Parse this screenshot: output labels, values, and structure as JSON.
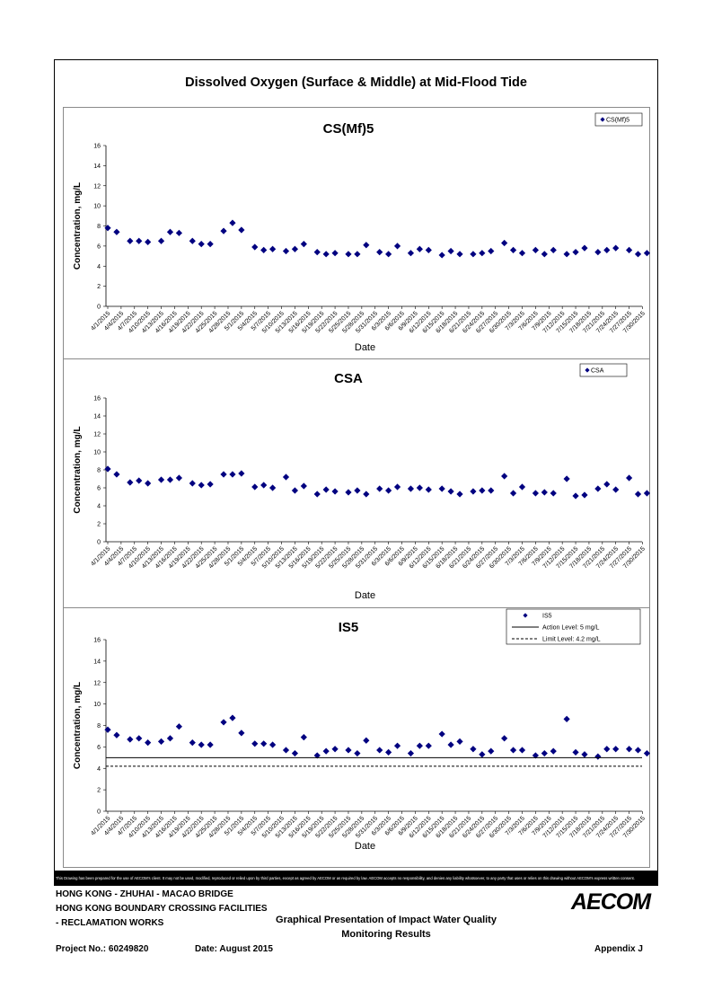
{
  "main_title": "Dissolved Oxygen (Surface & Middle) at Mid-Flood Tide",
  "date_ticks": [
    "4/1/2015",
    "4/4/2015",
    "4/7/2015",
    "4/10/2015",
    "4/13/2015",
    "4/16/2015",
    "4/19/2015",
    "4/22/2015",
    "4/25/2015",
    "4/28/2015",
    "5/1/2015",
    "5/4/2015",
    "5/7/2015",
    "5/10/2015",
    "5/13/2015",
    "5/16/2015",
    "5/19/2015",
    "5/22/2015",
    "5/25/2015",
    "5/28/2015",
    "5/31/2015",
    "6/3/2015",
    "6/6/2015",
    "6/9/2015",
    "6/12/2015",
    "6/15/2015",
    "6/18/2015",
    "6/21/2015",
    "6/24/2015",
    "6/27/2015",
    "6/30/2015",
    "7/3/2015",
    "7/6/2015",
    "7/9/2015",
    "7/12/2015",
    "7/15/2015",
    "7/18/2015",
    "7/21/2015",
    "7/24/2015",
    "7/27/2015",
    "7/30/2015"
  ],
  "chart_data": [
    {
      "type": "scatter",
      "title": "CS(Mf)5",
      "xlabel": "Date",
      "ylabel": "Concentration, mg/L",
      "ylim": [
        0,
        16
      ],
      "yticks": [
        "0",
        "2",
        "4",
        "6",
        "8",
        "10",
        "12",
        "14",
        "16"
      ],
      "legend_placement": "top-right",
      "series": [
        {
          "name": "CS(Mf)5",
          "marker": "diamond",
          "color": "#000080",
          "points": [
            [
              "4/1/2015",
              7.8
            ],
            [
              "4/3/2015",
              7.4
            ],
            [
              "4/6/2015",
              6.5
            ],
            [
              "4/8/2015",
              6.5
            ],
            [
              "4/10/2015",
              6.4
            ],
            [
              "4/13/2015",
              6.5
            ],
            [
              "4/15/2015",
              7.4
            ],
            [
              "4/17/2015",
              7.3
            ],
            [
              "4/20/2015",
              6.5
            ],
            [
              "4/22/2015",
              6.2
            ],
            [
              "4/24/2015",
              6.2
            ],
            [
              "4/27/2015",
              7.5
            ],
            [
              "4/29/2015",
              8.3
            ],
            [
              "5/1/2015",
              7.6
            ],
            [
              "5/4/2015",
              5.9
            ],
            [
              "5/6/2015",
              5.6
            ],
            [
              "5/8/2015",
              5.7
            ],
            [
              "5/11/2015",
              5.5
            ],
            [
              "5/13/2015",
              5.7
            ],
            [
              "5/15/2015",
              6.2
            ],
            [
              "5/18/2015",
              5.4
            ],
            [
              "5/20/2015",
              5.2
            ],
            [
              "5/22/2015",
              5.3
            ],
            [
              "5/25/2015",
              5.2
            ],
            [
              "5/27/2015",
              5.2
            ],
            [
              "5/29/2015",
              6.1
            ],
            [
              "6/1/2015",
              5.4
            ],
            [
              "6/3/2015",
              5.2
            ],
            [
              "6/5/2015",
              6.0
            ],
            [
              "6/8/2015",
              5.3
            ],
            [
              "6/10/2015",
              5.7
            ],
            [
              "6/12/2015",
              5.6
            ],
            [
              "6/15/2015",
              5.1
            ],
            [
              "6/17/2015",
              5.5
            ],
            [
              "6/19/2015",
              5.2
            ],
            [
              "6/22/2015",
              5.2
            ],
            [
              "6/24/2015",
              5.3
            ],
            [
              "6/26/2015",
              5.5
            ],
            [
              "6/29/2015",
              6.3
            ],
            [
              "7/1/2015",
              5.6
            ],
            [
              "7/3/2015",
              5.3
            ],
            [
              "7/6/2015",
              5.6
            ],
            [
              "7/8/2015",
              5.2
            ],
            [
              "7/10/2015",
              5.6
            ],
            [
              "7/13/2015",
              5.2
            ],
            [
              "7/15/2015",
              5.4
            ],
            [
              "7/17/2015",
              5.8
            ],
            [
              "7/20/2015",
              5.4
            ],
            [
              "7/22/2015",
              5.6
            ],
            [
              "7/24/2015",
              5.8
            ],
            [
              "7/27/2015",
              5.6
            ],
            [
              "7/29/2015",
              5.2
            ],
            [
              "7/31/2015",
              5.3
            ]
          ]
        }
      ]
    },
    {
      "type": "scatter",
      "title": "CSA",
      "xlabel": "Date",
      "ylabel": "Concentration, mg/L",
      "ylim": [
        0,
        16
      ],
      "yticks": [
        "0",
        "2",
        "4",
        "6",
        "8",
        "10",
        "12",
        "14",
        "16"
      ],
      "legend_placement": "top-right",
      "series": [
        {
          "name": "CSA",
          "marker": "diamond",
          "color": "#000080",
          "points": [
            [
              "4/1/2015",
              8.1
            ],
            [
              "4/3/2015",
              7.5
            ],
            [
              "4/6/2015",
              6.6
            ],
            [
              "4/8/2015",
              6.8
            ],
            [
              "4/10/2015",
              6.5
            ],
            [
              "4/13/2015",
              6.9
            ],
            [
              "4/15/2015",
              6.9
            ],
            [
              "4/17/2015",
              7.1
            ],
            [
              "4/20/2015",
              6.5
            ],
            [
              "4/22/2015",
              6.3
            ],
            [
              "4/24/2015",
              6.4
            ],
            [
              "4/27/2015",
              7.5
            ],
            [
              "4/29/2015",
              7.5
            ],
            [
              "5/1/2015",
              7.6
            ],
            [
              "5/4/2015",
              6.1
            ],
            [
              "5/6/2015",
              6.3
            ],
            [
              "5/8/2015",
              6.0
            ],
            [
              "5/11/2015",
              7.2
            ],
            [
              "5/13/2015",
              5.7
            ],
            [
              "5/15/2015",
              6.2
            ],
            [
              "5/18/2015",
              5.3
            ],
            [
              "5/20/2015",
              5.8
            ],
            [
              "5/22/2015",
              5.6
            ],
            [
              "5/25/2015",
              5.5
            ],
            [
              "5/27/2015",
              5.7
            ],
            [
              "5/29/2015",
              5.3
            ],
            [
              "6/1/2015",
              5.9
            ],
            [
              "6/3/2015",
              5.7
            ],
            [
              "6/5/2015",
              6.1
            ],
            [
              "6/8/2015",
              5.9
            ],
            [
              "6/10/2015",
              6.0
            ],
            [
              "6/12/2015",
              5.8
            ],
            [
              "6/15/2015",
              5.9
            ],
            [
              "6/17/2015",
              5.6
            ],
            [
              "6/19/2015",
              5.3
            ],
            [
              "6/22/2015",
              5.6
            ],
            [
              "6/24/2015",
              5.7
            ],
            [
              "6/26/2015",
              5.7
            ],
            [
              "6/29/2015",
              7.3
            ],
            [
              "7/1/2015",
              5.4
            ],
            [
              "7/3/2015",
              6.1
            ],
            [
              "7/6/2015",
              5.4
            ],
            [
              "7/8/2015",
              5.5
            ],
            [
              "7/10/2015",
              5.4
            ],
            [
              "7/13/2015",
              7.0
            ],
            [
              "7/15/2015",
              5.1
            ],
            [
              "7/17/2015",
              5.2
            ],
            [
              "7/20/2015",
              5.9
            ],
            [
              "7/22/2015",
              6.4
            ],
            [
              "7/24/2015",
              5.8
            ],
            [
              "7/27/2015",
              7.1
            ],
            [
              "7/29/2015",
              5.3
            ],
            [
              "7/31/2015",
              5.4
            ]
          ]
        }
      ]
    },
    {
      "type": "scatter",
      "title": "IS5",
      "xlabel": "Date",
      "ylabel": "Concentration, mg/L",
      "ylim": [
        0,
        16
      ],
      "yticks": [
        "0",
        "2",
        "4",
        "6",
        "8",
        "10",
        "12",
        "14",
        "16"
      ],
      "legend_placement": "top-right",
      "series": [
        {
          "name": "IS5",
          "marker": "diamond",
          "color": "#000080",
          "points": [
            [
              "4/1/2015",
              7.6
            ],
            [
              "4/3/2015",
              7.1
            ],
            [
              "4/6/2015",
              6.7
            ],
            [
              "4/8/2015",
              6.8
            ],
            [
              "4/10/2015",
              6.4
            ],
            [
              "4/13/2015",
              6.5
            ],
            [
              "4/15/2015",
              6.8
            ],
            [
              "4/17/2015",
              7.9
            ],
            [
              "4/20/2015",
              6.4
            ],
            [
              "4/22/2015",
              6.2
            ],
            [
              "4/24/2015",
              6.2
            ],
            [
              "4/27/2015",
              8.3
            ],
            [
              "4/29/2015",
              8.7
            ],
            [
              "5/1/2015",
              7.3
            ],
            [
              "5/4/2015",
              6.3
            ],
            [
              "5/6/2015",
              6.3
            ],
            [
              "5/8/2015",
              6.2
            ],
            [
              "5/11/2015",
              5.7
            ],
            [
              "5/13/2015",
              5.4
            ],
            [
              "5/15/2015",
              6.9
            ],
            [
              "5/18/2015",
              5.2
            ],
            [
              "5/20/2015",
              5.6
            ],
            [
              "5/22/2015",
              5.8
            ],
            [
              "5/25/2015",
              5.7
            ],
            [
              "5/27/2015",
              5.4
            ],
            [
              "5/29/2015",
              6.6
            ],
            [
              "6/1/2015",
              5.7
            ],
            [
              "6/3/2015",
              5.5
            ],
            [
              "6/5/2015",
              6.1
            ],
            [
              "6/8/2015",
              5.4
            ],
            [
              "6/10/2015",
              6.1
            ],
            [
              "6/12/2015",
              6.1
            ],
            [
              "6/15/2015",
              7.2
            ],
            [
              "6/17/2015",
              6.2
            ],
            [
              "6/19/2015",
              6.5
            ],
            [
              "6/22/2015",
              5.8
            ],
            [
              "6/24/2015",
              5.3
            ],
            [
              "6/26/2015",
              5.6
            ],
            [
              "6/29/2015",
              6.8
            ],
            [
              "7/1/2015",
              5.7
            ],
            [
              "7/3/2015",
              5.7
            ],
            [
              "7/6/2015",
              5.2
            ],
            [
              "7/8/2015",
              5.4
            ],
            [
              "7/10/2015",
              5.6
            ],
            [
              "7/13/2015",
              8.6
            ],
            [
              "7/15/2015",
              5.5
            ],
            [
              "7/17/2015",
              5.3
            ],
            [
              "7/20/2015",
              5.1
            ],
            [
              "7/22/2015",
              5.8
            ],
            [
              "7/24/2015",
              5.8
            ],
            [
              "7/27/2015",
              5.8
            ],
            [
              "7/29/2015",
              5.7
            ],
            [
              "7/31/2015",
              5.4
            ]
          ]
        },
        {
          "name": "Action Level: 5 mg/L",
          "type": "line",
          "style": "solid",
          "color": "#000000",
          "y": 5
        },
        {
          "name": "Limit Level: 4.2 mg/L",
          "type": "line",
          "style": "dashed",
          "color": "#000000",
          "y": 4.2
        }
      ]
    }
  ],
  "disclaimer": "This Drawing has been prepared for the use of AECOM's client. It may not be used, modified, reproduced or relied upon by third parties, except as agreed by AECOM or as required by law. AECOM accepts no responsibility, and denies any liability whatsoever, to any party that uses or relies on this drawing without AECOM's express written consent.",
  "footer": {
    "project_line1": "HONG KONG - ZHUHAI - MACAO BRIDGE",
    "project_line2": "HONG KONG BOUNDARY CROSSING FACILITIES",
    "project_line3": "- RECLAMATION WORKS",
    "drawing_title_line1": "Graphical Presentation of Impact Water Quality",
    "drawing_title_line2": "Monitoring Results",
    "project_no": "Project No.: 60249820",
    "date": "Date: August 2015",
    "appendix": "Appendix J",
    "logo": "AECOM"
  }
}
